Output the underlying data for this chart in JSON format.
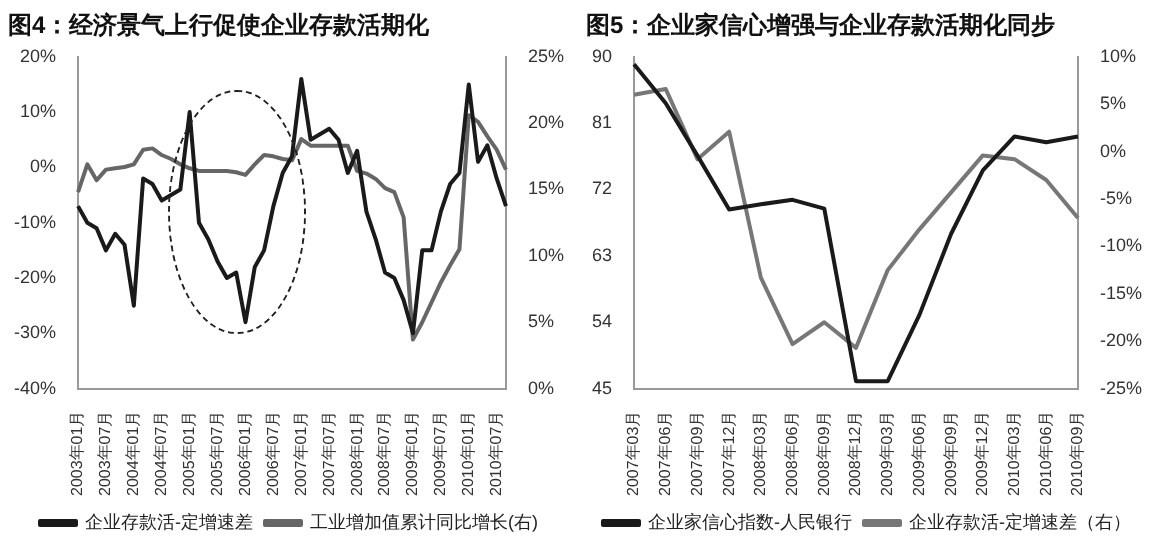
{
  "chart_data": [
    {
      "type": "line",
      "title": "图4：经济景气上行促使企业存款活期化",
      "categories": [
        "2003年01月",
        null,
        null,
        "2003年07月",
        null,
        null,
        "2004年01月",
        null,
        null,
        "2004年07月",
        null,
        null,
        "2005年01月",
        null,
        null,
        "2005年07月",
        null,
        null,
        "2006年01月",
        null,
        null,
        "2006年07月",
        null,
        null,
        "2007年01月",
        null,
        null,
        "2007年07月",
        null,
        null,
        "2008年01月",
        null,
        null,
        "2008年07月",
        null,
        null,
        "2009年01月",
        null,
        null,
        "2009年07月",
        null,
        null,
        "2010年01月",
        null,
        null,
        "2010年07月",
        null
      ],
      "series": [
        {
          "name": "企业存款活-定增速差",
          "color": "#1a1a1a",
          "values": [
            -7,
            -10,
            -11,
            -15,
            -12,
            -14,
            -25,
            -2,
            -3,
            -6,
            -5,
            -4,
            10,
            -10,
            -13,
            -17,
            -20,
            -19,
            -28,
            -18,
            -15,
            -7,
            -1,
            2,
            16,
            5,
            6,
            7,
            5,
            -1,
            3,
            -8,
            -13,
            -19,
            -20,
            -24,
            -30,
            -15,
            -15,
            -8,
            -3,
            -1,
            15,
            1,
            4,
            -2,
            -7
          ]
        },
        {
          "name": "工业增加值累计同比增长(右)",
          "color": "#666666",
          "axis": "y2",
          "values": [
            14.8,
            16.9,
            15.7,
            16.5,
            16.6,
            16.7,
            16.9,
            18,
            18.1,
            17.6,
            17.3,
            16.9,
            16.6,
            16.4,
            16.4,
            16.4,
            16.4,
            16.3,
            16.1,
            16.9,
            17.6,
            17.5,
            17.3,
            17.2,
            18.8,
            18.3,
            18.3,
            18.3,
            18.3,
            18.3,
            16.4,
            16.2,
            15.8,
            15.1,
            14.8,
            12.9,
            3.7,
            5,
            6.5,
            8,
            9.3,
            10.5,
            20.6,
            20.1,
            19,
            18,
            16.5
          ]
        }
      ],
      "ylim": [
        -40,
        20
      ],
      "yticks": [
        {
          "value": -40,
          "label": "-40%"
        },
        {
          "value": -30,
          "label": "-30%"
        },
        {
          "value": -20,
          "label": "-20%"
        },
        {
          "value": -10,
          "label": "-10%"
        },
        {
          "value": 0,
          "label": "0%"
        },
        {
          "value": 10,
          "label": "10%"
        },
        {
          "value": 20,
          "label": "20%"
        }
      ],
      "y2lim": [
        0,
        25
      ],
      "y2ticks": [
        {
          "value": 0,
          "label": "0%"
        },
        {
          "value": 5,
          "label": "5%"
        },
        {
          "value": 10,
          "label": "10%"
        },
        {
          "value": 15,
          "label": "15%"
        },
        {
          "value": 20,
          "label": "20%"
        },
        {
          "value": 25,
          "label": "25%"
        }
      ],
      "legend": "bottom",
      "grid": false,
      "marker": "none",
      "line_style": "solid"
    },
    {
      "type": "line",
      "title": "图5：企业家信心增强与企业存款活期化同步",
      "categories": [
        "2007年03月",
        "2007年06月",
        "2007年09月",
        "2007年12月",
        "2008年03月",
        "2008年06月",
        "2008年09月",
        "2008年12月",
        "2009年03月",
        "2009年06月",
        "2009年09月",
        "2009年12月",
        "2010年03月",
        "2010年06月",
        "2010年09月"
      ],
      "series": [
        {
          "name": "企业家信心指数-人民银行",
          "color": "#1a1a1a",
          "values": [
            89,
            83.7,
            76.6,
            69.3,
            70,
            70.6,
            69.4,
            46,
            46,
            55,
            66,
            74.6,
            79.2,
            78.4,
            79.2
          ]
        },
        {
          "name": "企业存款活-定增速差（右）",
          "color": "#777777",
          "axis": "y2",
          "values": [
            6,
            6.6,
            -0.8,
            2.1,
            -13.3,
            -20.3,
            -18,
            -20.7,
            -12.5,
            -8.2,
            -4.3,
            -0.4,
            -0.8,
            -3,
            -7
          ]
        }
      ],
      "ylim": [
        45,
        90
      ],
      "yticks": [
        45,
        54,
        63,
        72,
        81,
        90
      ],
      "y2lim": [
        -25,
        10
      ],
      "y2ticks": [
        {
          "value": -25,
          "label": "-25%"
        },
        {
          "value": -20,
          "label": "-20%"
        },
        {
          "value": -15,
          "label": "-15%"
        },
        {
          "value": -10,
          "label": "-10%"
        },
        {
          "value": -5,
          "label": "-5%"
        },
        {
          "value": 0,
          "label": "0%"
        },
        {
          "value": 5,
          "label": "5%"
        },
        {
          "value": 10,
          "label": "10%"
        }
      ],
      "legend": "bottom",
      "grid": false,
      "marker": "none",
      "line_style": "solid"
    }
  ]
}
